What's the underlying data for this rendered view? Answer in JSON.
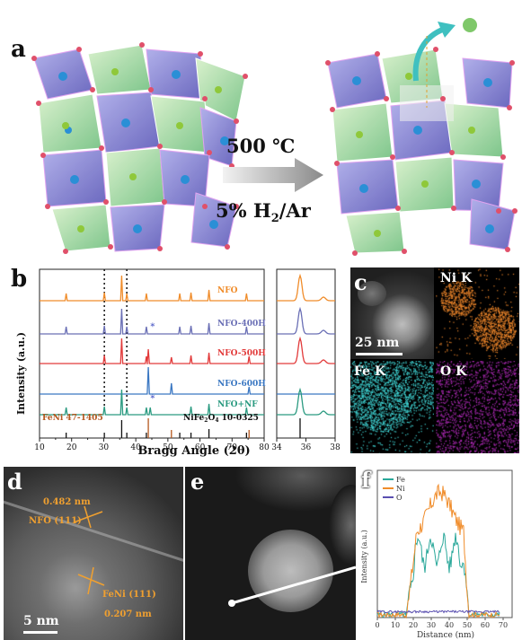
{
  "panels": {
    "a": {
      "label": "a",
      "condition_temp": "500 ℃",
      "condition_gas_prefix": "5% H",
      "condition_gas_sub": "2",
      "condition_gas_suffix": "/Ar"
    },
    "b": {
      "label": "b",
      "ylabel": "Intensity (a.u.)",
      "xlabel": "Bragg Angle (2θ)",
      "ref_left": "FeNi 47-1405",
      "ref_right_prefix": "NiFe",
      "ref_right_sub1": "2",
      "ref_right_mid": "O",
      "ref_right_sub2": "4",
      "ref_right_suffix": " 10-0325",
      "colors": [
        "#f08c2a",
        "#6a6fb5",
        "#e23a3a",
        "#3a77c2",
        "#2a9a80"
      ]
    },
    "c": {
      "label": "c",
      "scale": "25 nm",
      "maps": [
        "Ni K",
        "Fe K",
        "O K"
      ],
      "map_colors": [
        "#e8832a",
        "#3fd0d0",
        "#b02ab8"
      ]
    },
    "d": {
      "label": "d",
      "d1": "0.482 nm",
      "p1": "NFO (111)",
      "p2": "FeNi (111)",
      "d2": "0.207 nm",
      "scale": "5 nm"
    },
    "e": {
      "label": "e"
    },
    "f": {
      "label": "f",
      "legend": [
        "Fe",
        "Ni",
        "O"
      ],
      "colors": [
        "#2aa89a",
        "#f08c2a",
        "#5a4fb0"
      ],
      "ylabel": "Intensity (a.u.)",
      "xlabel": "Distance (nm)"
    }
  },
  "chart_data": [
    {
      "type": "line",
      "panel": "b-main",
      "series": [
        {
          "name": "NFO",
          "peaks": [
            18.3,
            30.2,
            35.6,
            37.2,
            43.3,
            53.7,
            57.2,
            62.8,
            74.5
          ]
        },
        {
          "name": "NFO-400H",
          "peaks": [
            18.3,
            30.2,
            35.6,
            37.2,
            43.3,
            53.7,
            57.2,
            62.8,
            74.5
          ]
        },
        {
          "name": "NFO-500H",
          "peaks": [
            30.2,
            35.6,
            43.3,
            43.9,
            51.1,
            57.2,
            62.8,
            75.3
          ]
        },
        {
          "name": "NFO-600H",
          "peaks": [
            43.9,
            51.1,
            75.3
          ]
        },
        {
          "name": "NFO+NF",
          "peaks": [
            18.3,
            30.2,
            35.6,
            37.2,
            43.3,
            44.5,
            57.2,
            62.8,
            74.5
          ]
        }
      ],
      "reference_FeNi": [
        43.9,
        51.1,
        75.3
      ],
      "reference_NiFe2O4": [
        18.3,
        30.2,
        35.6,
        37.2,
        43.3,
        53.7,
        57.2,
        62.8,
        74.5
      ],
      "xlim": [
        10,
        80
      ],
      "xticks": [
        10,
        15,
        20,
        25,
        30,
        35,
        40,
        45,
        50,
        55,
        60,
        65,
        70,
        75,
        80
      ]
    },
    {
      "type": "line",
      "panel": "b-zoom",
      "xlim": [
        34,
        38
      ],
      "xticks": [
        34,
        36,
        38
      ],
      "peak_center": 35.6
    },
    {
      "type": "line",
      "panel": "f",
      "xlim": [
        0,
        75
      ],
      "xticks": [
        0,
        10,
        20,
        30,
        40,
        50,
        60,
        70
      ],
      "series": [
        {
          "name": "Fe",
          "profile": "flat to 15, rise to ~0.5 plateau 20-50, drop at 52"
        },
        {
          "name": "Ni",
          "profile": "flat to 15, broad hump peaking ~0.85 at 35, drop at 52"
        },
        {
          "name": "O",
          "profile": "low noise ~0.05 across 0-68"
        }
      ]
    }
  ]
}
